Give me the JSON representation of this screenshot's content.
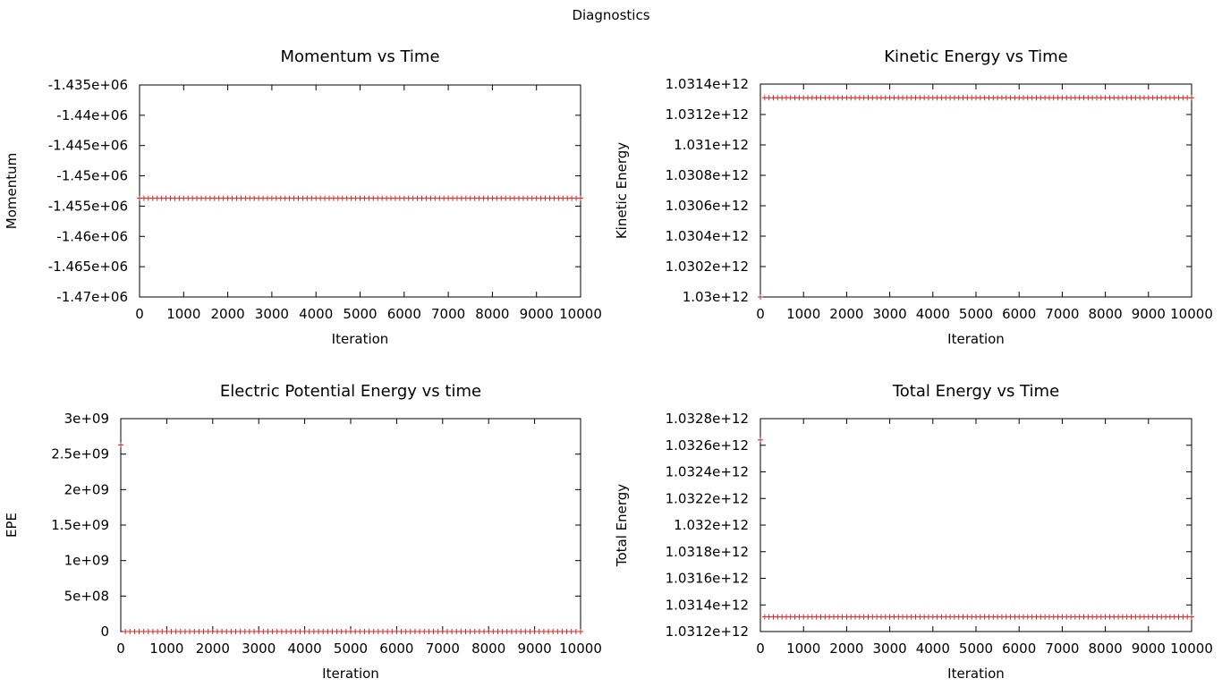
{
  "supertitle": "Diagnostics",
  "marker_color": "#dd2222",
  "chart_data": [
    {
      "type": "scatter",
      "title": "Momentum vs Time",
      "xlabel": "Iteration",
      "ylabel": "Momentum",
      "xlim": [
        0,
        10000
      ],
      "ylim": [
        -1470000,
        -1435000
      ],
      "xticks": [
        0,
        1000,
        2000,
        3000,
        4000,
        5000,
        6000,
        7000,
        8000,
        9000,
        10000
      ],
      "xtick_labels": [
        "0",
        "1000",
        "2000",
        "3000",
        "4000",
        "5000",
        "6000",
        "7000",
        "8000",
        "9000",
        "10000"
      ],
      "yticks": [
        -1435000,
        -1440000,
        -1445000,
        -1450000,
        -1455000,
        -1460000,
        -1465000,
        -1470000
      ],
      "ytick_labels": [
        "-1.435e+06",
        "-1.44e+06",
        "-1.445e+06",
        "-1.45e+06",
        "-1.455e+06",
        "-1.46e+06",
        "-1.465e+06",
        "-1.47e+06"
      ],
      "series": [
        {
          "x_start": 0,
          "x_end": 10000,
          "x_step": 100,
          "y": -1453700,
          "first_y": null
        }
      ]
    },
    {
      "type": "scatter",
      "title": "Kinetic Energy vs Time",
      "xlabel": "Iteration",
      "ylabel": "Kinetic Energy",
      "xlim": [
        0,
        10000
      ],
      "ylim": [
        1030000000000,
        1031400000000
      ],
      "xticks": [
        0,
        1000,
        2000,
        3000,
        4000,
        5000,
        6000,
        7000,
        8000,
        9000,
        10000
      ],
      "xtick_labels": [
        "0",
        "1000",
        "2000",
        "3000",
        "4000",
        "5000",
        "6000",
        "7000",
        "8000",
        "9000",
        "10000"
      ],
      "yticks": [
        1031400000000,
        1031200000000,
        1031000000000,
        1030800000000,
        1030600000000,
        1030400000000,
        1030200000000,
        1030000000000
      ],
      "ytick_labels": [
        "1.0314e+12",
        "1.0312e+12",
        "1.031e+12",
        "1.0308e+12",
        "1.0306e+12",
        "1.0304e+12",
        "1.0302e+12",
        "1.03e+12"
      ],
      "series": [
        {
          "x_start": 0,
          "x_end": 10000,
          "x_step": 100,
          "y": 1031310000000,
          "first_y": 1030000000000
        }
      ]
    },
    {
      "type": "scatter",
      "title": "Electric Potential Energy vs time",
      "xlabel": "Iteration",
      "ylabel": "EPE",
      "xlim": [
        0,
        10000
      ],
      "ylim": [
        0,
        3000000000
      ],
      "xticks": [
        0,
        1000,
        2000,
        3000,
        4000,
        5000,
        6000,
        7000,
        8000,
        9000,
        10000
      ],
      "xtick_labels": [
        "0",
        "1000",
        "2000",
        "3000",
        "4000",
        "5000",
        "6000",
        "7000",
        "8000",
        "9000",
        "10000"
      ],
      "yticks": [
        3000000000,
        2500000000,
        2000000000,
        1500000000,
        1000000000,
        500000000,
        0
      ],
      "ytick_labels": [
        "3e+09",
        "2.5e+09",
        "2e+09",
        "1.5e+09",
        "1e+09",
        "5e+08",
        "0"
      ],
      "series": [
        {
          "x_start": 0,
          "x_end": 10000,
          "x_step": 100,
          "y": 0,
          "first_y": 2630000000
        }
      ]
    },
    {
      "type": "scatter",
      "title": "Total Energy vs Time",
      "xlabel": "Iteration",
      "ylabel": "Total Energy",
      "xlim": [
        0,
        10000
      ],
      "ylim": [
        1031200000000,
        1032800000000
      ],
      "xticks": [
        0,
        1000,
        2000,
        3000,
        4000,
        5000,
        6000,
        7000,
        8000,
        9000,
        10000
      ],
      "xtick_labels": [
        "0",
        "1000",
        "2000",
        "3000",
        "4000",
        "5000",
        "6000",
        "7000",
        "8000",
        "9000",
        "10000"
      ],
      "yticks": [
        1032800000000,
        1032600000000,
        1032400000000,
        1032200000000,
        1032000000000,
        1031800000000,
        1031600000000,
        1031400000000,
        1031200000000
      ],
      "ytick_labels": [
        "1.0328e+12",
        "1.0326e+12",
        "1.0324e+12",
        "1.0322e+12",
        "1.032e+12",
        "1.0318e+12",
        "1.0316e+12",
        "1.0314e+12",
        "1.0312e+12"
      ],
      "series": [
        {
          "x_start": 0,
          "x_end": 10000,
          "x_step": 100,
          "y": 1031310000000,
          "first_y": 1032640000000
        }
      ]
    }
  ]
}
